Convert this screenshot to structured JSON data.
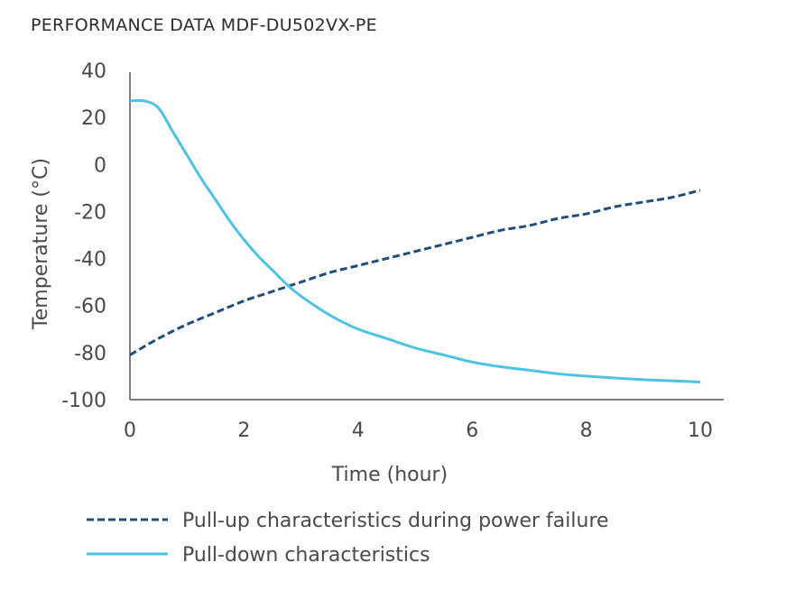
{
  "chart_data": {
    "type": "line",
    "title": "PERFORMANCE DATA MDF-DU502VX-PE",
    "xlabel": "Time (hour)",
    "ylabel": "Temperature (°C)",
    "xlim": [
      0,
      10.2
    ],
    "ylim": [
      -100,
      40
    ],
    "x_ticks": [
      "0",
      "2",
      "4",
      "6",
      "8",
      "10"
    ],
    "y_ticks": [
      "40",
      "20",
      "0",
      "-20",
      "-40",
      "-60",
      "-80",
      "-100"
    ],
    "x_tick_values": [
      0,
      2,
      4,
      6,
      8,
      10
    ],
    "y_tick_values": [
      40,
      20,
      0,
      -20,
      -40,
      -60,
      -80,
      -100
    ],
    "grid": false,
    "legend_position": "bottom",
    "series": [
      {
        "name": "Pull-up characteristics during power failure",
        "color": "#1f4e7a",
        "style": "dashed",
        "x": [
          0,
          0.5,
          1,
          1.5,
          2,
          2.5,
          3,
          3.5,
          4,
          4.5,
          5,
          5.5,
          6,
          6.5,
          7,
          7.5,
          8,
          8.5,
          9,
          9.5,
          10
        ],
        "y": [
          -81,
          -74,
          -68,
          -63,
          -58,
          -54,
          -50,
          -46,
          -43,
          -40,
          -37,
          -34,
          -31,
          -28,
          -26,
          -23,
          -21,
          -18,
          -16,
          -14,
          -11
        ]
      },
      {
        "name": "Pull-down characteristics",
        "color": "#4dc3e3",
        "style": "solid",
        "x": [
          0,
          0.25,
          0.5,
          0.75,
          1,
          1.25,
          1.5,
          1.75,
          2,
          2.25,
          2.5,
          2.75,
          3,
          3.5,
          4,
          4.5,
          5,
          5.5,
          6,
          6.5,
          7,
          7.5,
          8,
          8.5,
          9,
          9.5,
          10
        ],
        "y": [
          27,
          27,
          24,
          14,
          4,
          -6,
          -15,
          -24,
          -32,
          -39,
          -45,
          -51,
          -56,
          -64,
          -70,
          -74,
          -78,
          -81,
          -84,
          -86,
          -87.5,
          -89,
          -90,
          -90.8,
          -91.5,
          -92,
          -92.5
        ]
      }
    ]
  }
}
